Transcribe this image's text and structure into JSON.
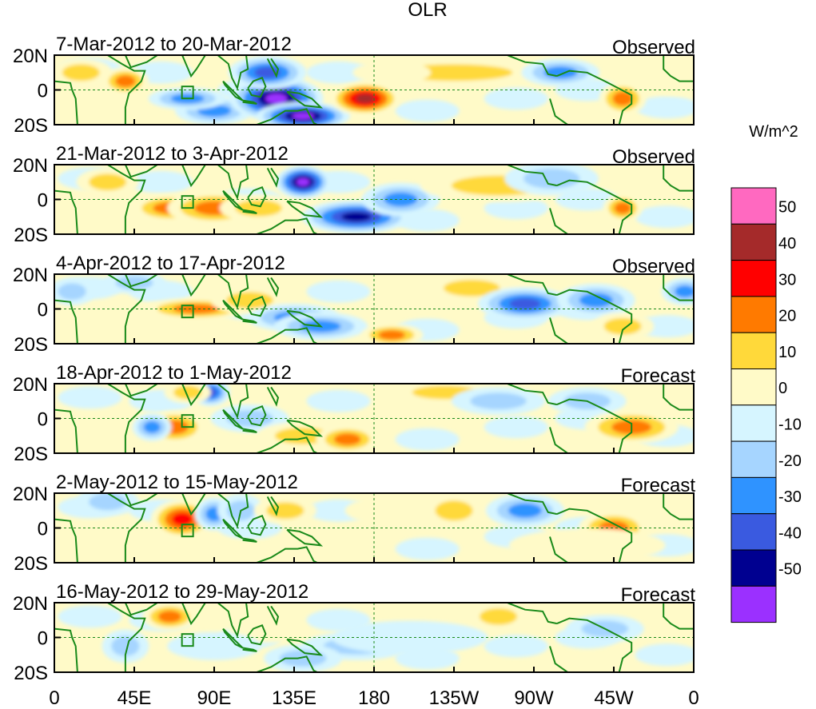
{
  "chart_data": {
    "type": "heatmap",
    "title": "OLR",
    "colorbar": {
      "units": "W/m^2",
      "levels": [
        50,
        40,
        30,
        20,
        10,
        0,
        -10,
        -20,
        -30,
        -40,
        -50
      ],
      "colors": [
        "#ff69c0",
        "#a52a2a",
        "#ff0000",
        "#ff7a00",
        "#ffd93a",
        "#fffac8",
        "#d6f5ff",
        "#a6d5ff",
        "#2f93ff",
        "#3a5ae0",
        "#000090",
        "#9b30ff"
      ]
    },
    "x_ticks": [
      "0",
      "45E",
      "90E",
      "135E",
      "180",
      "135W",
      "90W",
      "45W",
      "0"
    ],
    "x_values": [
      0,
      45,
      90,
      135,
      180,
      225,
      270,
      315,
      360
    ],
    "y_ticks": [
      "20N",
      "0",
      "20S"
    ],
    "y_values": [
      20,
      0,
      -20
    ],
    "xlim": [
      0,
      360
    ],
    "ylim": [
      -20,
      20
    ],
    "panels": [
      {
        "period": "7-Mar-2012 to 20-Mar-2012",
        "status": "Observed",
        "anomalies": [
          {
            "lon": 40,
            "lat": 5,
            "value": 25,
            "slon": 6,
            "slat": 5
          },
          {
            "lon": 90,
            "lat": -12,
            "value": -25,
            "slon": 10,
            "slat": 5
          },
          {
            "lon": 125,
            "lat": -5,
            "value": -55,
            "slon": 12,
            "slat": 8
          },
          {
            "lon": 140,
            "lat": -15,
            "value": -55,
            "slon": 12,
            "slat": 5
          },
          {
            "lon": 120,
            "lat": 10,
            "value": -35,
            "slon": 10,
            "slat": 6
          },
          {
            "lon": 175,
            "lat": -5,
            "value": 42,
            "slon": 9,
            "slat": 6
          },
          {
            "lon": 225,
            "lat": 10,
            "value": 15,
            "slon": 25,
            "slat": 5
          },
          {
            "lon": 190,
            "lat": 10,
            "value": 10,
            "slon": 10,
            "slat": 4
          },
          {
            "lon": 320,
            "lat": -5,
            "value": 30,
            "slon": 6,
            "slat": 6
          },
          {
            "lon": 285,
            "lat": 10,
            "value": -25,
            "slon": 10,
            "slat": 5
          },
          {
            "lon": 75,
            "lat": -5,
            "value": -25,
            "slon": 10,
            "slat": 4
          },
          {
            "lon": 15,
            "lat": 10,
            "value": 20,
            "slon": 8,
            "slat": 5
          },
          {
            "lon": 350,
            "lat": 5,
            "value": 10,
            "slon": 10,
            "slat": 5
          }
        ]
      },
      {
        "period": "21-Mar-2012 to 3-Apr-2012",
        "status": "Observed",
        "anomalies": [
          {
            "lon": 65,
            "lat": -5,
            "value": 30,
            "slon": 10,
            "slat": 5
          },
          {
            "lon": 90,
            "lat": -5,
            "value": 30,
            "slon": 12,
            "slat": 6
          },
          {
            "lon": 115,
            "lat": -5,
            "value": 20,
            "slon": 10,
            "slat": 5
          },
          {
            "lon": 140,
            "lat": 10,
            "value": -55,
            "slon": 7,
            "slat": 6
          },
          {
            "lon": 170,
            "lat": -10,
            "value": -45,
            "slon": 14,
            "slat": 6
          },
          {
            "lon": 195,
            "lat": 0,
            "value": -25,
            "slon": 10,
            "slat": 6
          },
          {
            "lon": 250,
            "lat": 8,
            "value": 18,
            "slon": 20,
            "slat": 6
          },
          {
            "lon": 320,
            "lat": -5,
            "value": 30,
            "slon": 5,
            "slat": 5
          },
          {
            "lon": 280,
            "lat": 12,
            "value": -20,
            "slon": 12,
            "slat": 6
          },
          {
            "lon": 30,
            "lat": 10,
            "value": 15,
            "slon": 8,
            "slat": 5
          }
        ]
      },
      {
        "period": "4-Apr-2012 to 17-Apr-2012",
        "status": "Observed",
        "anomalies": [
          {
            "lon": 80,
            "lat": 0,
            "value": 25,
            "slon": 14,
            "slat": 4
          },
          {
            "lon": 110,
            "lat": 5,
            "value": 15,
            "slon": 10,
            "slat": 5
          },
          {
            "lon": 135,
            "lat": -5,
            "value": -25,
            "slon": 12,
            "slat": 5
          },
          {
            "lon": 150,
            "lat": -10,
            "value": -25,
            "slon": 12,
            "slat": 5
          },
          {
            "lon": 190,
            "lat": -15,
            "value": 25,
            "slon": 8,
            "slat": 4
          },
          {
            "lon": 235,
            "lat": 12,
            "value": 20,
            "slon": 12,
            "slat": 5
          },
          {
            "lon": 265,
            "lat": 3,
            "value": -35,
            "slon": 12,
            "slat": 6
          },
          {
            "lon": 305,
            "lat": 5,
            "value": -30,
            "slon": 10,
            "slat": 6
          },
          {
            "lon": 320,
            "lat": -10,
            "value": 15,
            "slon": 8,
            "slat": 5
          },
          {
            "lon": 45,
            "lat": 15,
            "value": -20,
            "slon": 8,
            "slat": 4
          },
          {
            "lon": 10,
            "lat": 10,
            "value": -15,
            "slon": 6,
            "slat": 5
          },
          {
            "lon": 355,
            "lat": 10,
            "value": -25,
            "slon": 6,
            "slat": 5
          }
        ]
      },
      {
        "period": "18-Apr-2012 to 1-May-2012",
        "status": "Forecast",
        "anomalies": [
          {
            "lon": 68,
            "lat": -5,
            "value": 25,
            "slon": 8,
            "slat": 6
          },
          {
            "lon": 88,
            "lat": 15,
            "value": -40,
            "slon": 5,
            "slat": 5
          },
          {
            "lon": 75,
            "lat": 15,
            "value": 15,
            "slon": 6,
            "slat": 4
          },
          {
            "lon": 55,
            "lat": -5,
            "value": -30,
            "slon": 5,
            "slat": 5
          },
          {
            "lon": 110,
            "lat": 0,
            "value": -15,
            "slon": 10,
            "slat": 5
          },
          {
            "lon": 140,
            "lat": -10,
            "value": 12,
            "slon": 12,
            "slat": 5
          },
          {
            "lon": 165,
            "lat": -12,
            "value": 25,
            "slon": 8,
            "slat": 5
          },
          {
            "lon": 220,
            "lat": 15,
            "value": 15,
            "slon": 14,
            "slat": 4
          },
          {
            "lon": 250,
            "lat": 10,
            "value": -20,
            "slon": 12,
            "slat": 5
          },
          {
            "lon": 325,
            "lat": -5,
            "value": 25,
            "slon": 12,
            "slat": 6
          },
          {
            "lon": 300,
            "lat": 10,
            "value": -15,
            "slon": 10,
            "slat": 5
          }
        ]
      },
      {
        "period": "2-May-2012 to 15-May-2012",
        "status": "Forecast",
        "anomalies": [
          {
            "lon": 72,
            "lat": 5,
            "value": 40,
            "slon": 8,
            "slat": 7
          },
          {
            "lon": 90,
            "lat": 8,
            "value": -25,
            "slon": 5,
            "slat": 6
          },
          {
            "lon": 30,
            "lat": 15,
            "value": -15,
            "slon": 8,
            "slat": 5
          },
          {
            "lon": 105,
            "lat": 10,
            "value": -15,
            "slon": 6,
            "slat": 6
          },
          {
            "lon": 130,
            "lat": 10,
            "value": 15,
            "slon": 8,
            "slat": 5
          },
          {
            "lon": 190,
            "lat": 10,
            "value": 10,
            "slon": 12,
            "slat": 5
          },
          {
            "lon": 225,
            "lat": 10,
            "value": 20,
            "slon": 8,
            "slat": 6
          },
          {
            "lon": 265,
            "lat": 10,
            "value": -30,
            "slon": 10,
            "slat": 6
          },
          {
            "lon": 315,
            "lat": 0,
            "value": 30,
            "slon": 9,
            "slat": 6
          },
          {
            "lon": 300,
            "lat": -10,
            "value": 10,
            "slon": 20,
            "slat": 6
          }
        ]
      },
      {
        "period": "16-May-2012 to 29-May-2012",
        "status": "Forecast",
        "anomalies": [
          {
            "lon": 65,
            "lat": 12,
            "value": 25,
            "slon": 7,
            "slat": 5
          },
          {
            "lon": 40,
            "lat": -5,
            "value": -15,
            "slon": 6,
            "slat": 6
          },
          {
            "lon": 120,
            "lat": 5,
            "value": 10,
            "slon": 10,
            "slat": 5
          },
          {
            "lon": 170,
            "lat": -5,
            "value": -15,
            "slon": 14,
            "slat": 5
          },
          {
            "lon": 200,
            "lat": 0,
            "value": -10,
            "slon": 20,
            "slat": 6
          },
          {
            "lon": 250,
            "lat": 12,
            "value": 18,
            "slon": 8,
            "slat": 5
          },
          {
            "lon": 310,
            "lat": 5,
            "value": -20,
            "slon": 10,
            "slat": 5
          },
          {
            "lon": 140,
            "lat": -12,
            "value": -12,
            "slon": 10,
            "slat": 5
          },
          {
            "lon": 90,
            "lat": -5,
            "value": -10,
            "slon": 12,
            "slat": 5
          }
        ]
      }
    ]
  }
}
